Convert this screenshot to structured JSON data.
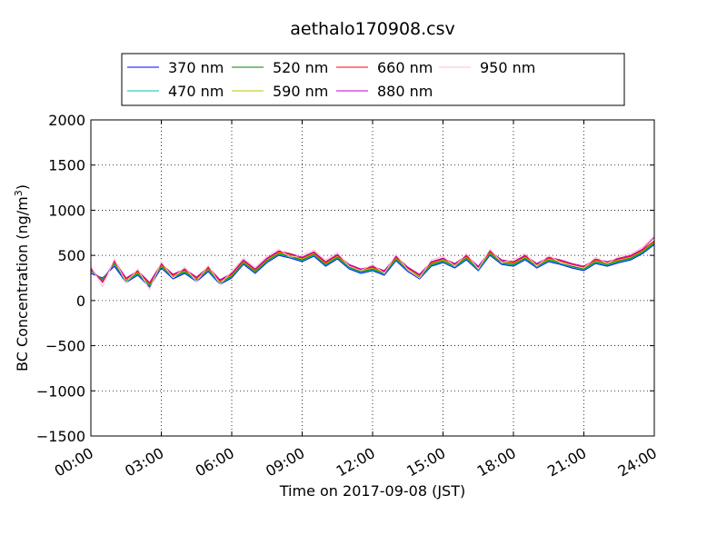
{
  "chart_data": {
    "type": "line",
    "title": "aethalo170908.csv",
    "xlabel": "Time on 2017-09-08 (JST)",
    "ylabel": "BC Concentration (ng/m",
    "ylabel_superscript": "3",
    "ylabel_suffix": ")",
    "x_ticks": [
      "00:00",
      "03:00",
      "06:00",
      "09:00",
      "12:00",
      "15:00",
      "18:00",
      "21:00",
      "24:00"
    ],
    "y_ticks": [
      "2000",
      "1500",
      "1000",
      "500",
      "0",
      "−500",
      "−1000",
      "−1500"
    ],
    "xlim_hours": [
      0,
      24
    ],
    "ylim": [
      -1500,
      2000
    ],
    "grid": true,
    "legend_position": "top",
    "x_hours": [
      0.0,
      0.5,
      1.0,
      1.5,
      2.0,
      2.5,
      3.0,
      3.5,
      4.0,
      4.5,
      5.0,
      5.5,
      6.0,
      6.5,
      7.0,
      7.5,
      8.0,
      8.5,
      9.0,
      9.5,
      10.0,
      10.5,
      11.0,
      11.5,
      12.0,
      12.5,
      13.0,
      13.5,
      14.0,
      14.5,
      15.0,
      15.5,
      16.0,
      16.5,
      17.0,
      17.5,
      18.0,
      18.5,
      19.0,
      19.5,
      20.0,
      20.5,
      21.0,
      21.5,
      22.0,
      22.5,
      23.0,
      23.5,
      24.0
    ],
    "series": [
      {
        "name": "370 nm",
        "color": "#0000ff",
        "values": [
          300,
          250,
          380,
          200,
          280,
          150,
          360,
          240,
          300,
          210,
          320,
          180,
          250,
          400,
          300,
          420,
          500,
          470,
          430,
          490,
          380,
          460,
          350,
          300,
          330,
          280,
          440,
          320,
          240,
          380,
          420,
          360,
          450,
          330,
          500,
          400,
          380,
          450,
          360,
          430,
          400,
          360,
          330,
          410,
          380,
          420,
          450,
          520,
          620
        ]
      },
      {
        "name": "470 nm",
        "color": "#00c0a0",
        "values": [
          320,
          240,
          400,
          210,
          290,
          160,
          370,
          250,
          310,
          220,
          330,
          190,
          260,
          410,
          310,
          430,
          510,
          480,
          440,
          500,
          390,
          470,
          360,
          310,
          340,
          290,
          450,
          330,
          250,
          390,
          430,
          370,
          460,
          340,
          510,
          410,
          390,
          460,
          370,
          440,
          410,
          370,
          340,
          420,
          390,
          430,
          460,
          530,
          630
        ]
      },
      {
        "name": "520 nm",
        "color": "#008000",
        "values": [
          330,
          230,
          410,
          220,
          300,
          170,
          380,
          260,
          320,
          230,
          340,
          200,
          270,
          420,
          320,
          440,
          520,
          490,
          450,
          510,
          400,
          480,
          370,
          320,
          350,
          300,
          460,
          340,
          260,
          400,
          440,
          380,
          470,
          350,
          520,
          420,
          400,
          470,
          380,
          450,
          420,
          380,
          350,
          430,
          400,
          440,
          470,
          540,
          640
        ]
      },
      {
        "name": "590 nm",
        "color": "#bfbf00",
        "values": [
          340,
          220,
          420,
          230,
          310,
          180,
          390,
          270,
          330,
          240,
          350,
          210,
          280,
          430,
          330,
          450,
          530,
          500,
          460,
          520,
          410,
          490,
          380,
          330,
          360,
          310,
          470,
          350,
          270,
          410,
          450,
          390,
          480,
          360,
          530,
          430,
          410,
          480,
          390,
          460,
          430,
          390,
          360,
          440,
          410,
          450,
          480,
          550,
          650
        ]
      },
      {
        "name": "660 nm",
        "color": "#ff0000",
        "values": [
          350,
          210,
          430,
          240,
          320,
          190,
          400,
          280,
          340,
          250,
          360,
          220,
          290,
          440,
          340,
          460,
          540,
          510,
          470,
          530,
          420,
          500,
          390,
          340,
          370,
          320,
          480,
          360,
          280,
          420,
          460,
          400,
          490,
          370,
          540,
          440,
          420,
          490,
          400,
          470,
          440,
          400,
          370,
          450,
          420,
          460,
          490,
          560,
          660
        ]
      },
      {
        "name": "880 nm",
        "color": "#bf00bf",
        "values": [
          360,
          200,
          440,
          250,
          330,
          200,
          410,
          290,
          350,
          260,
          370,
          230,
          300,
          450,
          350,
          470,
          550,
          520,
          480,
          540,
          430,
          510,
          400,
          350,
          380,
          330,
          490,
          370,
          290,
          430,
          470,
          410,
          500,
          380,
          550,
          450,
          430,
          500,
          410,
          480,
          450,
          410,
          380,
          460,
          430,
          470,
          500,
          570,
          700
        ]
      },
      {
        "name": "950 nm",
        "color": "#ffc0cb",
        "values": [
          380,
          150,
          460,
          200,
          350,
          120,
          430,
          250,
          370,
          210,
          390,
          180,
          320,
          470,
          370,
          490,
          570,
          480,
          500,
          560,
          450,
          530,
          380,
          330,
          400,
          300,
          510,
          340,
          250,
          450,
          490,
          380,
          520,
          350,
          570,
          420,
          450,
          520,
          380,
          500,
          420,
          390,
          360,
          480,
          410,
          490,
          520,
          590,
          720
        ]
      }
    ]
  }
}
